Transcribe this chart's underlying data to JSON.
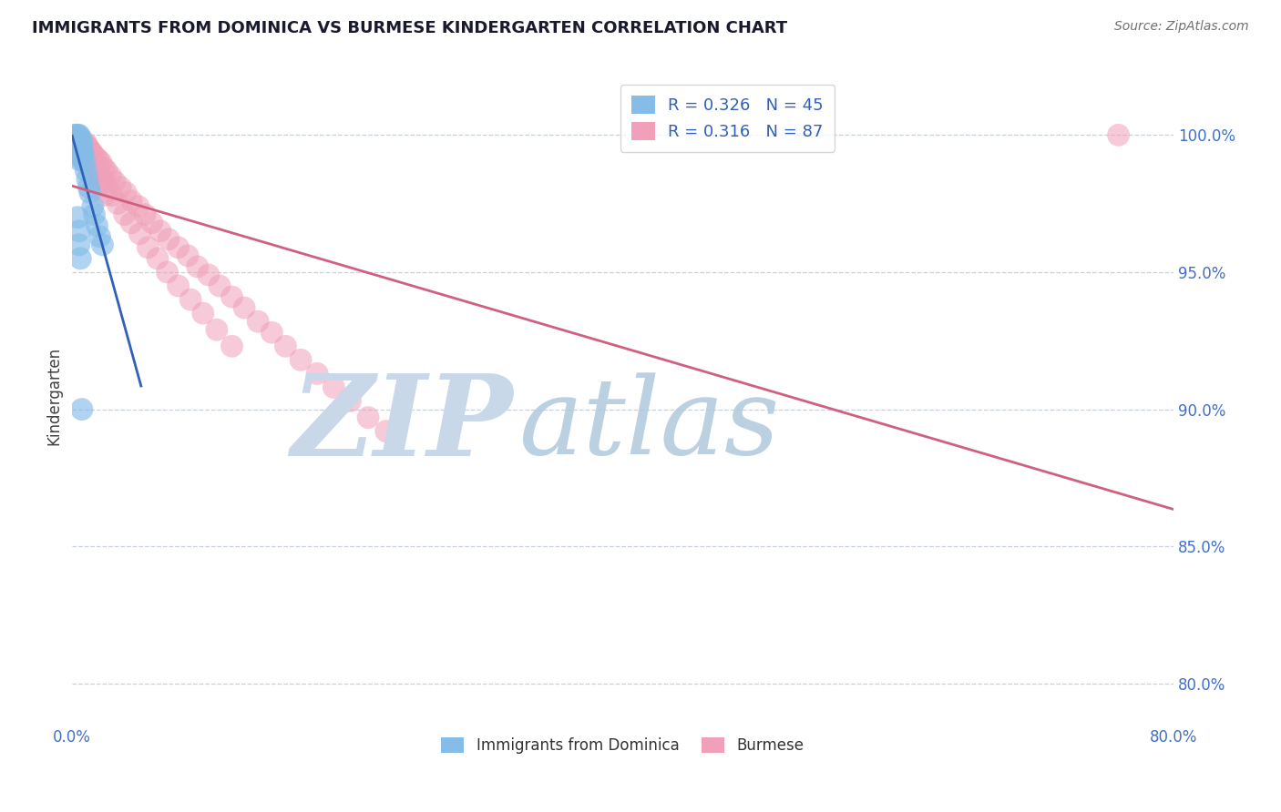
{
  "title": "IMMIGRANTS FROM DOMINICA VS BURMESE KINDERGARTEN CORRELATION CHART",
  "source_text": "Source: ZipAtlas.com",
  "ylabel": "Kindergarten",
  "xlim": [
    0.0,
    0.8
  ],
  "ylim": [
    0.785,
    1.025
  ],
  "xtick_values": [
    0.0,
    0.1,
    0.2,
    0.3,
    0.4,
    0.5,
    0.6,
    0.7,
    0.8
  ],
  "ytick_values": [
    0.8,
    0.85,
    0.9,
    0.95,
    1.0
  ],
  "ytick_labels": [
    "80.0%",
    "85.0%",
    "90.0%",
    "95.0%",
    "100.0%"
  ],
  "series1_label": "Immigrants from Dominica",
  "series1_R": "0.326",
  "series1_N": "45",
  "series1_color": "#85bce8",
  "series1_line_color": "#3060b8",
  "series2_label": "Burmese",
  "series2_R": "0.316",
  "series2_N": "87",
  "series2_color": "#f0a0b8",
  "series2_line_color": "#d06080",
  "bg_color": "#ffffff",
  "watermark_zip_color": "#c8d8e8",
  "watermark_atlas_color": "#b0c8dc",
  "grid_color": "#c8d0dc",
  "tick_label_color": "#4070cc",
  "title_color": "#1a1a2e",
  "legend_text_color": "#3060b8",
  "series1_x": [
    0.002,
    0.002,
    0.003,
    0.003,
    0.003,
    0.003,
    0.004,
    0.004,
    0.004,
    0.004,
    0.004,
    0.005,
    0.005,
    0.005,
    0.005,
    0.005,
    0.005,
    0.005,
    0.005,
    0.005,
    0.005,
    0.006,
    0.006,
    0.006,
    0.006,
    0.006,
    0.007,
    0.007,
    0.007,
    0.008,
    0.009,
    0.01,
    0.011,
    0.012,
    0.013,
    0.015,
    0.016,
    0.018,
    0.02,
    0.022,
    0.004,
    0.005,
    0.005,
    0.006,
    0.007
  ],
  "series1_y": [
    1.0,
    0.999,
    1.0,
    0.999,
    0.998,
    0.997,
    1.0,
    0.999,
    0.998,
    0.997,
    0.996,
    1.0,
    0.999,
    0.998,
    0.997,
    0.996,
    0.995,
    0.994,
    0.993,
    0.992,
    0.991,
    0.999,
    0.998,
    0.997,
    0.996,
    0.994,
    0.997,
    0.995,
    0.993,
    0.993,
    0.99,
    0.987,
    0.984,
    0.981,
    0.979,
    0.974,
    0.971,
    0.967,
    0.963,
    0.96,
    0.97,
    0.965,
    0.96,
    0.955,
    0.9
  ],
  "series2_x": [
    0.002,
    0.003,
    0.003,
    0.004,
    0.004,
    0.005,
    0.005,
    0.005,
    0.006,
    0.006,
    0.006,
    0.007,
    0.007,
    0.007,
    0.008,
    0.008,
    0.009,
    0.009,
    0.01,
    0.01,
    0.011,
    0.012,
    0.013,
    0.014,
    0.015,
    0.017,
    0.019,
    0.021,
    0.023,
    0.025,
    0.028,
    0.031,
    0.035,
    0.039,
    0.043,
    0.048,
    0.053,
    0.058,
    0.064,
    0.07,
    0.077,
    0.084,
    0.091,
    0.099,
    0.107,
    0.116,
    0.125,
    0.135,
    0.145,
    0.155,
    0.166,
    0.178,
    0.19,
    0.202,
    0.215,
    0.228,
    0.009,
    0.01,
    0.012,
    0.014,
    0.016,
    0.019,
    0.022,
    0.025,
    0.029,
    0.033,
    0.038,
    0.043,
    0.049,
    0.055,
    0.062,
    0.069,
    0.077,
    0.086,
    0.095,
    0.105,
    0.116,
    0.007,
    0.008,
    0.01,
    0.012,
    0.014,
    0.017,
    0.02,
    0.023,
    0.76
  ],
  "series2_y": [
    0.999,
    0.999,
    0.998,
    0.998,
    0.997,
    0.999,
    0.998,
    0.997,
    0.998,
    0.997,
    0.996,
    0.998,
    0.997,
    0.996,
    0.997,
    0.996,
    0.997,
    0.995,
    0.997,
    0.995,
    0.996,
    0.995,
    0.994,
    0.994,
    0.993,
    0.992,
    0.991,
    0.99,
    0.988,
    0.987,
    0.985,
    0.983,
    0.981,
    0.979,
    0.976,
    0.974,
    0.971,
    0.968,
    0.965,
    0.962,
    0.959,
    0.956,
    0.952,
    0.949,
    0.945,
    0.941,
    0.937,
    0.932,
    0.928,
    0.923,
    0.918,
    0.913,
    0.908,
    0.903,
    0.897,
    0.892,
    0.996,
    0.995,
    0.993,
    0.991,
    0.989,
    0.986,
    0.984,
    0.981,
    0.978,
    0.975,
    0.971,
    0.968,
    0.964,
    0.959,
    0.955,
    0.95,
    0.945,
    0.94,
    0.935,
    0.929,
    0.923,
    0.997,
    0.995,
    0.993,
    0.991,
    0.988,
    0.985,
    0.982,
    0.978,
    1.0
  ]
}
